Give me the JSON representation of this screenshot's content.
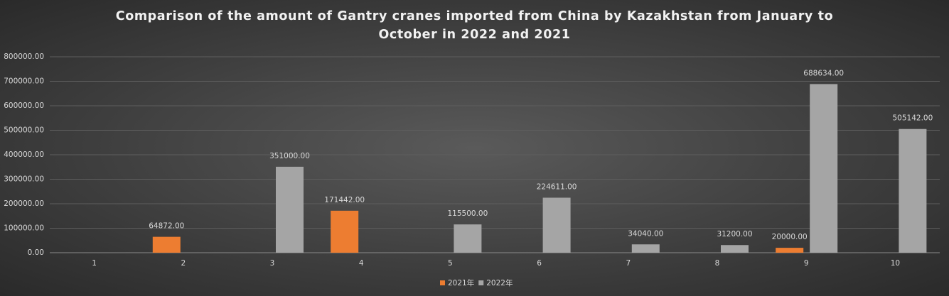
{
  "chart_data": {
    "type": "bar",
    "title": "Comparison of the amount of Gantry cranes imported from China by Kazakhstan from January to October in 2022 and 2021",
    "categories": [
      "1",
      "2",
      "3",
      "4",
      "5",
      "6",
      "7",
      "8",
      "9",
      "10"
    ],
    "series": [
      {
        "name": "2021年",
        "color": "#ed7d31",
        "values": [
          null,
          64872,
          null,
          171442,
          null,
          null,
          null,
          null,
          20000,
          null
        ],
        "value_labels": [
          null,
          "64872.00",
          null,
          "171442.00",
          null,
          null,
          null,
          null,
          "20000.00",
          null
        ]
      },
      {
        "name": "2022年",
        "color": "#a5a5a5",
        "values": [
          null,
          null,
          351000,
          null,
          115500,
          224611,
          34040,
          31200,
          688634,
          505142
        ],
        "value_labels": [
          null,
          null,
          "351000.00",
          null,
          "115500.00",
          "224611.00",
          "34040.00",
          "31200.00",
          "688634.00",
          "505142.00"
        ]
      }
    ],
    "ylim": [
      0,
      800000
    ],
    "yticks": [
      {
        "value": 0,
        "label": "0.00"
      },
      {
        "value": 100000,
        "label": "100000.00"
      },
      {
        "value": 200000,
        "label": "200000.00"
      },
      {
        "value": 300000,
        "label": "300000.00"
      },
      {
        "value": 400000,
        "label": "400000.00"
      },
      {
        "value": 500000,
        "label": "500000.00"
      },
      {
        "value": 600000,
        "label": "600000.00"
      },
      {
        "value": 700000,
        "label": "700000.00"
      },
      {
        "value": 800000,
        "label": "800000.00"
      }
    ],
    "grid": true,
    "legend": "bottom"
  }
}
